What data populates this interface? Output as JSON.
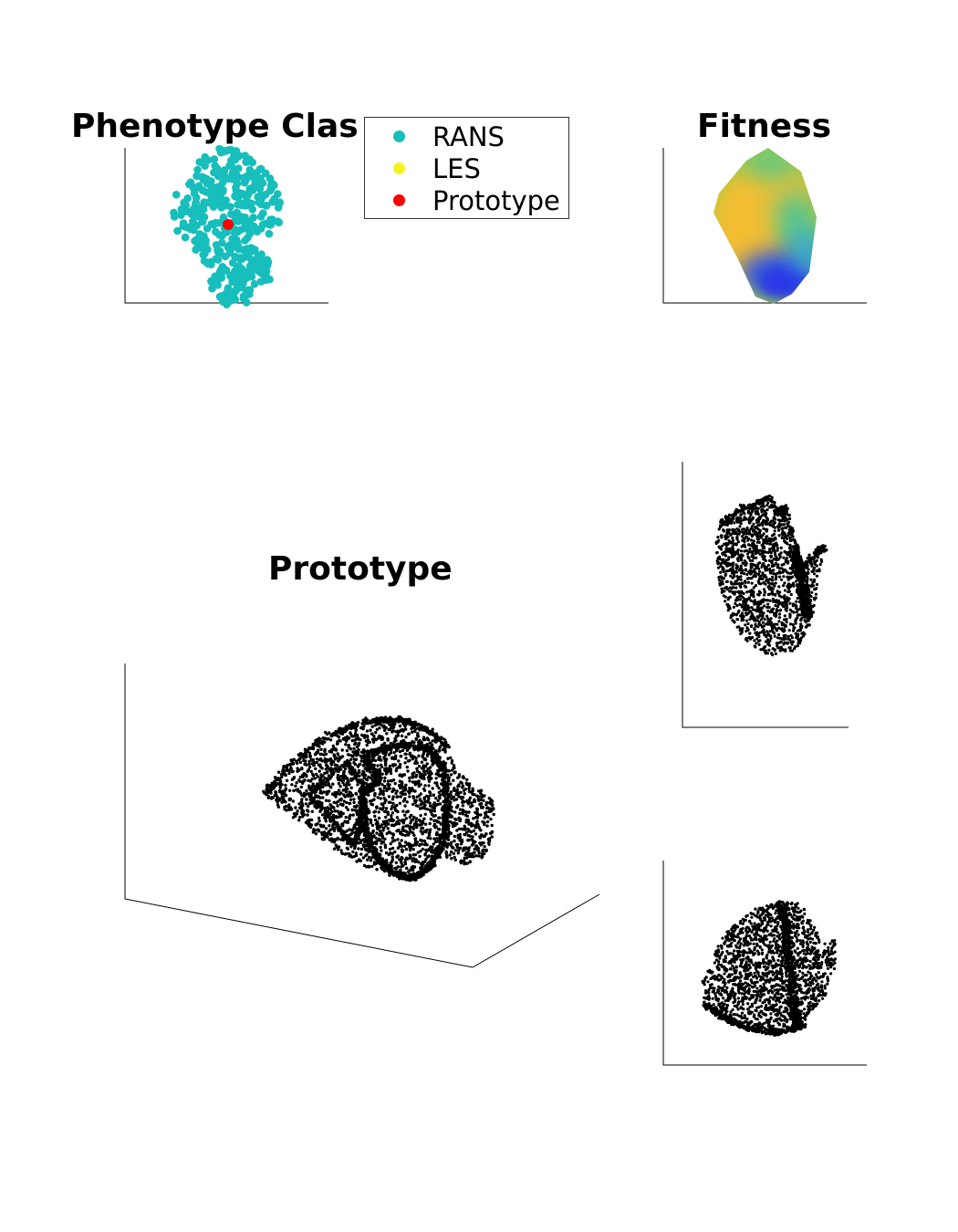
{
  "chart_data": [
    {
      "type": "scatter",
      "title": "Phenotype Clas",
      "xlabel": "",
      "ylabel": "",
      "grid": false,
      "legend": {
        "placement": "top-right",
        "entries": [
          {
            "label": "RANS",
            "color": "#17BEBB"
          },
          {
            "label": "LES",
            "color": "#F5F31E"
          },
          {
            "label": "Prototype",
            "color": "#FF0000"
          }
        ]
      },
      "series": [
        {
          "name": "RANS",
          "color": "#17BEBB",
          "shape": "two-lobed cluster, ~400 points"
        },
        {
          "name": "Prototype",
          "color": "#FF0000",
          "x": [
            0.5
          ],
          "y": [
            0.5
          ]
        }
      ]
    },
    {
      "type": "heatmap",
      "title": "Fitness",
      "xlabel": "",
      "ylabel": "",
      "colormap": "parula",
      "colors": {
        "high": "#F5BE30",
        "mid": "#7FC95A",
        "low": "#2C38E6"
      }
    },
    {
      "type": "scatter",
      "subtype": "3d-point-cloud",
      "title": "Prototype",
      "color": "#000000",
      "views": [
        "main",
        "side",
        "front"
      ]
    }
  ]
}
